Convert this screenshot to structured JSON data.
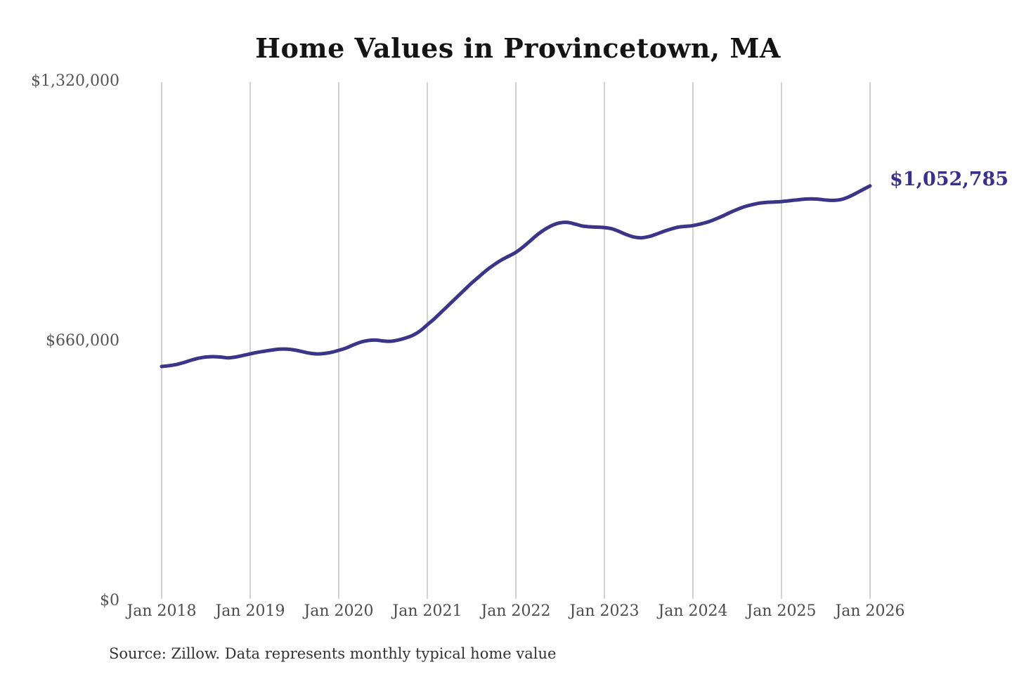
{
  "chart_data": {
    "type": "line",
    "title": "Home Values in Provincetown, MA",
    "xlabel": "",
    "ylabel": "",
    "ylim": [
      0,
      1320000
    ],
    "grid": "vertical-only",
    "legend": "none",
    "line_color": "#3b3589",
    "gridline_color": "#b3b3b3",
    "x_interval": "monthly",
    "x_range": [
      "Jan 2018",
      "Jan 2026"
    ],
    "x_tick_labels": [
      "Jan 2018",
      "Jan 2019",
      "Jan 2020",
      "Jan 2021",
      "Jan 2022",
      "Jan 2023",
      "Jan 2024",
      "Jan 2025",
      "Jan 2026"
    ],
    "y_ticks": [
      {
        "label": "$1,320,000",
        "value": 1320000
      },
      {
        "label": "$660,000",
        "value": 660000
      },
      {
        "label": "$0",
        "value": 0
      }
    ],
    "series": [
      {
        "name": "Monthly typical home value",
        "values": [
          594000,
          596000,
          599000,
          604000,
          610000,
          615000,
          618000,
          619000,
          618000,
          616000,
          618000,
          622000,
          626000,
          630000,
          633000,
          636000,
          638000,
          638000,
          636000,
          632000,
          628000,
          626000,
          627000,
          630000,
          635000,
          641000,
          649000,
          656000,
          660000,
          661000,
          659000,
          658000,
          661000,
          666000,
          673000,
          684000,
          700000,
          716000,
          734000,
          752000,
          770000,
          788000,
          806000,
          822000,
          838000,
          852000,
          864000,
          874000,
          884000,
          898000,
          914000,
          930000,
          943000,
          953000,
          959000,
          960000,
          956000,
          951000,
          949000,
          948000,
          947000,
          944000,
          937000,
          929000,
          923000,
          921000,
          924000,
          930000,
          937000,
          943000,
          948000,
          950000,
          952000,
          956000,
          961000,
          968000,
          976000,
          985000,
          993000,
          1000000,
          1005000,
          1009000,
          1011000,
          1012000,
          1013000,
          1015000,
          1017000,
          1019000,
          1020000,
          1019000,
          1017000,
          1016000,
          1018000,
          1024000,
          1033000,
          1043000,
          1052785
        ]
      }
    ],
    "annotation": {
      "label": "$1,052,785",
      "value": 1052785,
      "color": "#38318b"
    },
    "source_note": "Source: Zillow. Data represents monthly typical home value"
  }
}
